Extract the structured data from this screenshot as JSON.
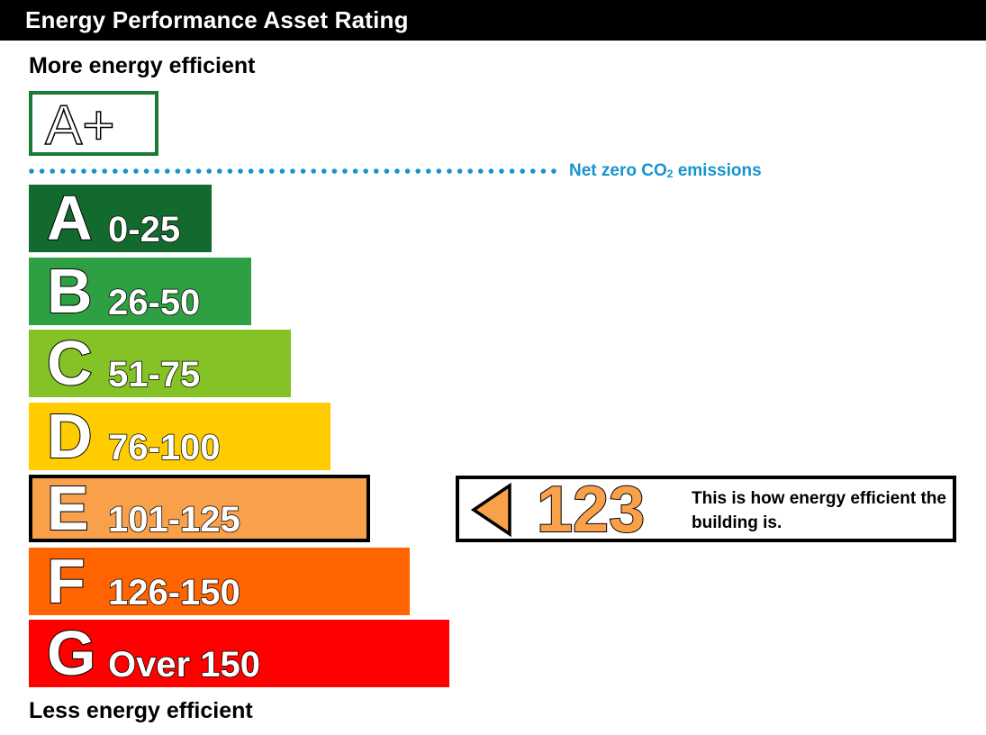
{
  "title": "Energy Performance Asset Rating",
  "top_caption": "More energy efficient",
  "bottom_caption": "Less energy efficient",
  "aplus": {
    "label": "A+",
    "border_color": "#1b7b35"
  },
  "net_zero": {
    "label_main": "Net zero CO",
    "label_sub": "2",
    "label_tail": " emissions",
    "color": "#1694cc"
  },
  "chart_data": {
    "type": "bar",
    "categories": [
      "A",
      "B",
      "C",
      "D",
      "E",
      "F",
      "G"
    ],
    "ranges": [
      "0-25",
      "26-50",
      "51-75",
      "76-100",
      "101-125",
      "126-150",
      "Over 150"
    ],
    "colors": [
      "#136a2f",
      "#2ea043",
      "#84c225",
      "#ffcc00",
      "#f8a04a",
      "#ff6400",
      "#ff0000"
    ],
    "selected_band": "E",
    "rating_value": 123,
    "rating_note": "This is how energy efficient the building is."
  }
}
